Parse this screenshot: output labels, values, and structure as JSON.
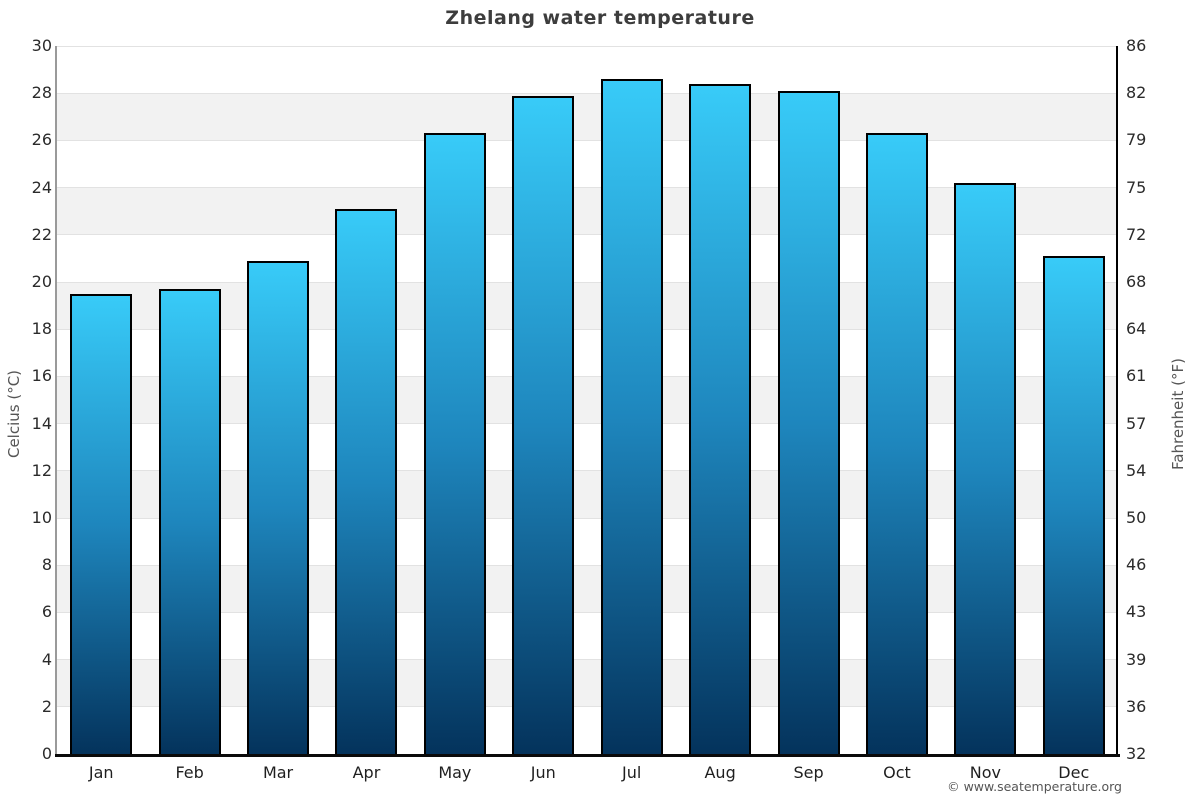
{
  "chart_data": {
    "type": "bar",
    "title": "Zhelang water temperature",
    "categories": [
      "Jan",
      "Feb",
      "Mar",
      "Apr",
      "May",
      "Jun",
      "Jul",
      "Aug",
      "Sep",
      "Oct",
      "Nov",
      "Dec"
    ],
    "values": [
      19.5,
      19.7,
      20.9,
      23.1,
      26.3,
      27.9,
      28.6,
      28.4,
      28.1,
      26.3,
      24.2,
      21.1
    ],
    "ylabel_left": "Celcius (°C)",
    "ylabel_right": "Fahrenheit (°F)",
    "ylim": [
      0,
      30
    ],
    "celsius_ticks": [
      0,
      2,
      4,
      6,
      8,
      10,
      12,
      14,
      16,
      18,
      20,
      22,
      24,
      26,
      28,
      30
    ],
    "fahrenheit_ticks": [
      32,
      36,
      39,
      43,
      46,
      50,
      54,
      57,
      61,
      64,
      68,
      72,
      75,
      79,
      82,
      86
    ],
    "grid": true,
    "legend": "none",
    "colors": {
      "bar_gradient_top": "#38CBF8",
      "bar_gradient_mid": "#1E86BD",
      "bar_gradient_bottom": "#04335C",
      "bar_border": "#000000",
      "alternate_band": "#f2f2f2",
      "gridline": "#e2e2e2",
      "title_text": "#3d3d3d",
      "tick_text": "#2b2b2b"
    }
  },
  "footer": {
    "copyright": "© www.seatemperature.org"
  }
}
